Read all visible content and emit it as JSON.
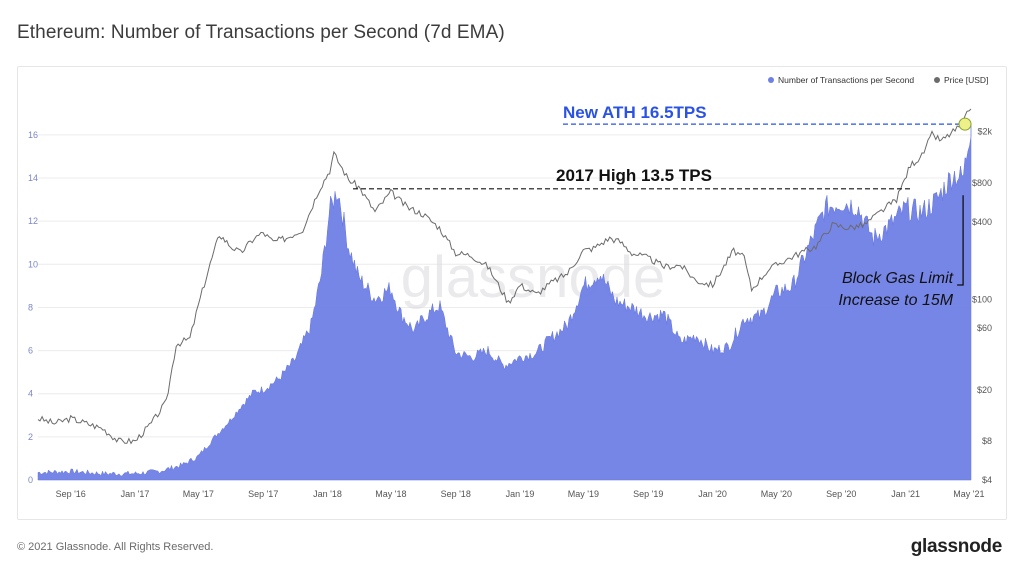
{
  "page": {
    "title": "Ethereum: Number of Transactions per Second (7d EMA)",
    "copyright": "© 2021 Glassnode. All Rights Reserved.",
    "brand": "glassnode",
    "watermark": "glassnode"
  },
  "chart_data": {
    "type": "area",
    "title": "Ethereum: Number of Transactions per Second (7d EMA)",
    "legend": {
      "placement": "top-right",
      "entries": [
        {
          "name": "Number of Transactions per Second",
          "color": "#6f7fe6"
        },
        {
          "name": "Price [USD]",
          "color": "#6b6b6b"
        }
      ]
    },
    "grid": true,
    "x_ticks": [
      "Sep '16",
      "Jan '17",
      "May '17",
      "Sep '17",
      "Jan '18",
      "May '18",
      "Sep '18",
      "Jan '19",
      "May '19",
      "Sep '19",
      "Jan '20",
      "May '20",
      "Sep '20",
      "Jan '21",
      "May '21"
    ],
    "y_left": {
      "ticks": [
        0,
        2,
        4,
        6,
        8,
        10,
        12,
        14,
        16
      ],
      "range": [
        0,
        17.2
      ]
    },
    "y_right": {
      "scale": "log",
      "ticks": [
        4,
        8,
        20,
        60,
        100,
        400,
        800,
        2000
      ],
      "tick_labels": [
        "$4",
        "$8",
        "$20",
        "$60",
        "$100",
        "$400",
        "$800",
        "$2k"
      ],
      "range": [
        4,
        3000
      ]
    },
    "series": [
      {
        "name": "Number of Transactions per Second",
        "axis": "left",
        "color": "#6f7fe6",
        "x": [
          "2016-07-01",
          "2016-09-01",
          "2016-11-01",
          "2017-01-01",
          "2017-02-15",
          "2017-04-01",
          "2017-05-01",
          "2017-06-01",
          "2017-07-01",
          "2017-07-20",
          "2017-08-15",
          "2017-09-01",
          "2017-10-01",
          "2017-11-01",
          "2017-12-01",
          "2017-12-20",
          "2018-01-05",
          "2018-01-20",
          "2018-02-10",
          "2018-03-01",
          "2018-04-01",
          "2018-05-01",
          "2018-05-20",
          "2018-06-15",
          "2018-07-01",
          "2018-08-01",
          "2018-09-01",
          "2018-10-01",
          "2018-11-01",
          "2018-12-01",
          "2019-01-01",
          "2019-02-01",
          "2019-03-01",
          "2019-04-01",
          "2019-05-01",
          "2019-06-01",
          "2019-07-01",
          "2019-08-01",
          "2019-09-01",
          "2019-10-01",
          "2019-11-01",
          "2019-12-01",
          "2020-01-01",
          "2020-02-01",
          "2020-03-01",
          "2020-04-01",
          "2020-05-01",
          "2020-06-01",
          "2020-07-01",
          "2020-08-01",
          "2020-09-01",
          "2020-10-01",
          "2020-11-01",
          "2020-12-01",
          "2021-01-01",
          "2021-02-01",
          "2021-03-01",
          "2021-04-01",
          "2021-04-20",
          "2021-05-05"
        ],
        "values": [
          0.35,
          0.4,
          0.3,
          0.3,
          0.4,
          0.7,
          1.1,
          2.0,
          2.8,
          3.4,
          4.1,
          4.2,
          4.7,
          5.6,
          7.2,
          9.5,
          12.5,
          13.5,
          10.8,
          9.4,
          8.4,
          8.9,
          7.7,
          6.9,
          7.5,
          8.1,
          5.9,
          5.7,
          6.0,
          5.3,
          5.7,
          5.9,
          6.6,
          7.2,
          9.0,
          9.6,
          8.3,
          8.0,
          7.6,
          7.7,
          6.4,
          6.7,
          6.0,
          6.2,
          7.5,
          7.6,
          8.7,
          9.0,
          10.8,
          12.6,
          12.9,
          12.7,
          11.2,
          11.8,
          12.6,
          12.4,
          13.0,
          14.2,
          14.0,
          16.5
        ]
      },
      {
        "name": "Price [USD]",
        "axis": "right",
        "color": "#6b6b6b",
        "x": [
          "2016-07-01",
          "2016-08-01",
          "2016-09-01",
          "2016-10-01",
          "2016-11-01",
          "2016-12-01",
          "2017-01-01",
          "2017-02-01",
          "2017-03-01",
          "2017-03-20",
          "2017-04-15",
          "2017-05-01",
          "2017-05-20",
          "2017-06-10",
          "2017-07-01",
          "2017-07-20",
          "2017-08-15",
          "2017-09-01",
          "2017-09-20",
          "2017-10-15",
          "2017-11-15",
          "2017-12-15",
          "2018-01-05",
          "2018-01-13",
          "2018-02-10",
          "2018-03-01",
          "2018-04-01",
          "2018-05-01",
          "2018-06-01",
          "2018-07-01",
          "2018-08-01",
          "2018-09-01",
          "2018-10-01",
          "2018-11-01",
          "2018-12-10",
          "2019-01-01",
          "2019-02-01",
          "2019-03-01",
          "2019-04-01",
          "2019-05-01",
          "2019-05-20",
          "2019-06-20",
          "2019-07-10",
          "2019-08-01",
          "2019-09-01",
          "2019-10-01",
          "2019-11-01",
          "2019-12-01",
          "2020-01-01",
          "2020-02-10",
          "2020-03-01",
          "2020-03-15",
          "2020-04-15",
          "2020-05-15",
          "2020-06-15",
          "2020-07-15",
          "2020-08-15",
          "2020-09-15",
          "2020-10-15",
          "2020-11-20",
          "2020-12-15",
          "2021-01-10",
          "2021-02-01",
          "2021-02-20",
          "2021-03-10",
          "2021-04-01",
          "2021-04-20",
          "2021-05-05"
        ],
        "values": [
          12,
          11,
          12,
          11,
          10,
          8,
          8,
          11,
          16,
          45,
          50,
          90,
          170,
          320,
          260,
          230,
          300,
          330,
          280,
          300,
          350,
          700,
          1000,
          1350,
          850,
          750,
          480,
          680,
          520,
          460,
          360,
          230,
          220,
          180,
          95,
          130,
          110,
          135,
          160,
          240,
          250,
          300,
          280,
          230,
          210,
          180,
          185,
          140,
          130,
          240,
          210,
          120,
          170,
          200,
          230,
          260,
          380,
          360,
          380,
          500,
          600,
          1100,
          1300,
          1900,
          1700,
          2000,
          2300,
          3300
        ]
      }
    ],
    "annotations": [
      {
        "text": "New ATH 16.5TPS",
        "value": 16.5,
        "color": "#2a52e5",
        "style": "dashed"
      },
      {
        "text": "2017 High 13.5 TPS",
        "value": 13.5,
        "color": "#111111",
        "style": "dashed"
      },
      {
        "text": "Block Gas Limit",
        "text2": "Increase to 15M",
        "date": "2021-04-20",
        "color": "#111111"
      }
    ]
  }
}
